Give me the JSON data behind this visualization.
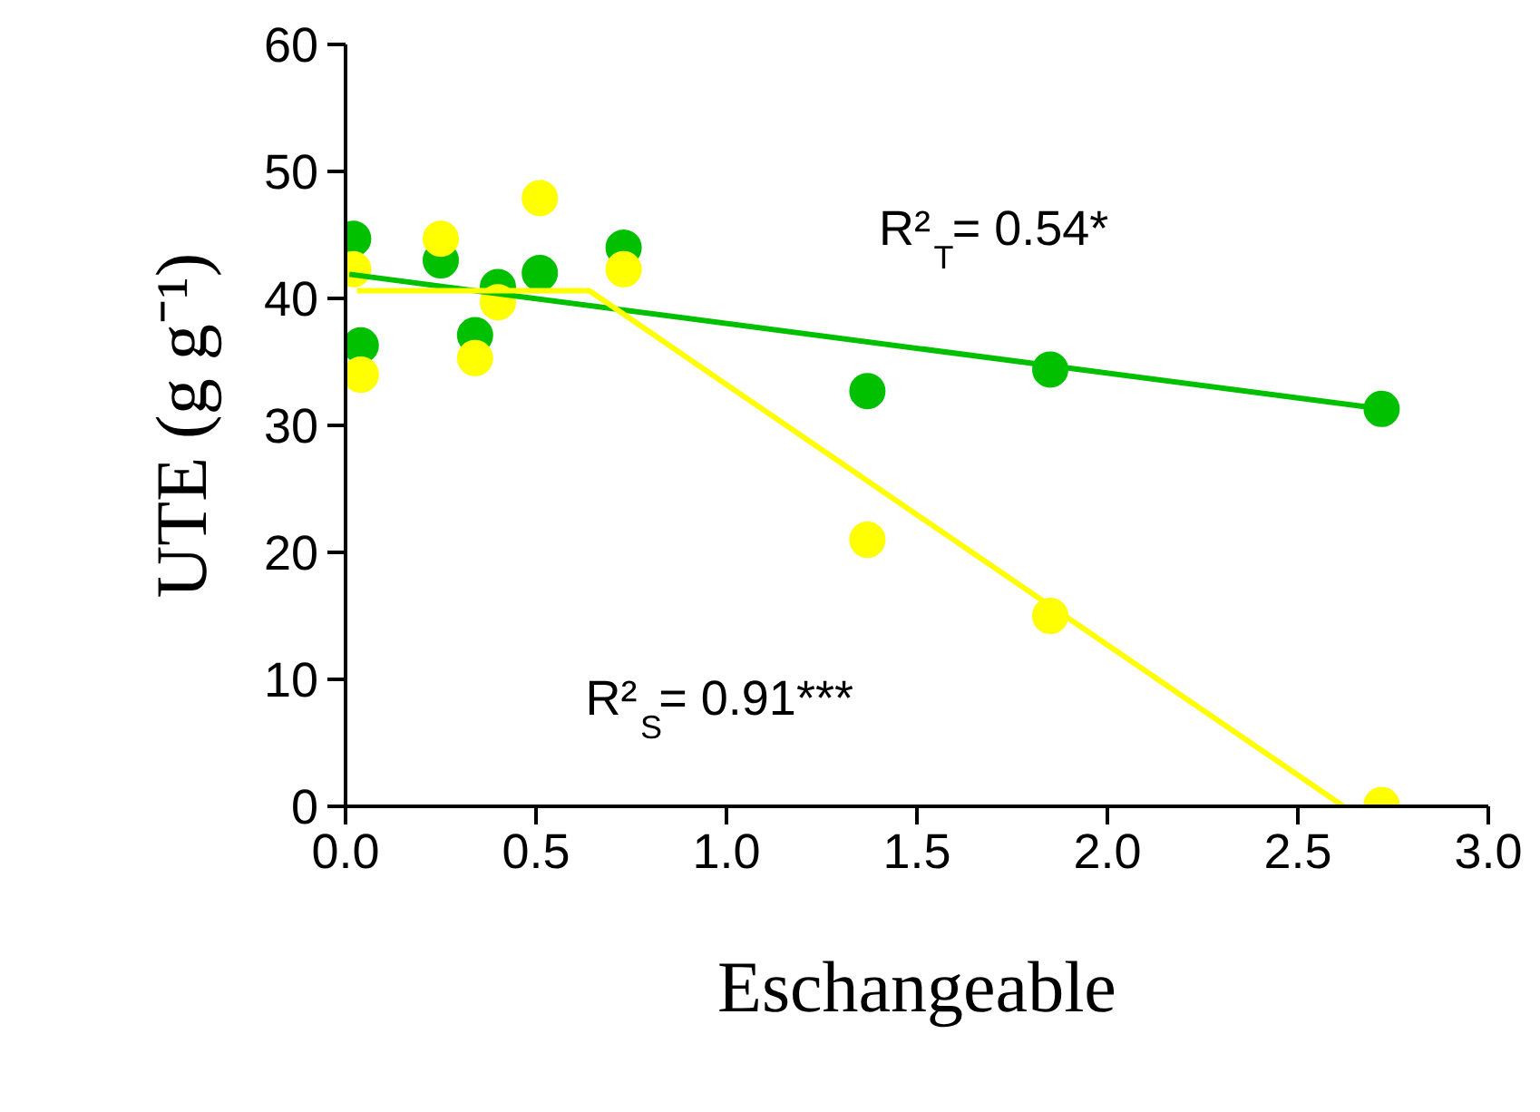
{
  "chart_data": {
    "type": "scatter",
    "xlabel": "Eschangeable",
    "ylabel": "UTE (g g⁻¹)",
    "xlim": [
      0,
      3
    ],
    "ylim": [
      0,
      60
    ],
    "xticks": [
      {
        "value": 0,
        "label": "0.0"
      },
      {
        "value": 0.5,
        "label": "0.5"
      },
      {
        "value": 1,
        "label": "1.0"
      },
      {
        "value": 1.5,
        "label": "1.5"
      },
      {
        "value": 2,
        "label": "2.0"
      },
      {
        "value": 2.5,
        "label": "2.5"
      },
      {
        "value": 3,
        "label": "3.0"
      }
    ],
    "yticks": [
      0,
      10,
      20,
      30,
      40,
      50,
      60
    ],
    "grid": false,
    "annotations": [
      "R²$_{T}$= 0.54*",
      "R²$_{S}$= 0.91***"
    ],
    "series": [
      {
        "marker": "circle",
        "color": "#00c000",
        "x": [
          0.02,
          0.04,
          0.25,
          0.34,
          0.4,
          0.51,
          0.73,
          1.37,
          1.85,
          2.72
        ],
        "values": [
          44.7,
          36.3,
          43.0,
          37.1,
          40.9,
          42.0,
          44.0,
          32.7,
          34.4,
          31.3
        ]
      },
      {
        "marker": "circle",
        "color": "#ffff00",
        "x": [
          0.02,
          0.04,
          0.25,
          0.34,
          0.4,
          0.51,
          0.73,
          1.37,
          1.85,
          2.72
        ],
        "values": [
          42.3,
          34.0,
          44.7,
          35.3,
          39.7,
          47.9,
          42.3,
          21.0,
          15.0,
          0.1
        ]
      },
      {
        "type": "line",
        "color": "#00c000",
        "x": [
          0.01,
          2.72
        ],
        "values": [
          41.9,
          31.3
        ]
      },
      {
        "type": "line",
        "color": "#ffff00",
        "x": [
          0.03,
          0.64,
          2.62
        ],
        "values": [
          40.6,
          40.6,
          0
        ]
      }
    ]
  }
}
